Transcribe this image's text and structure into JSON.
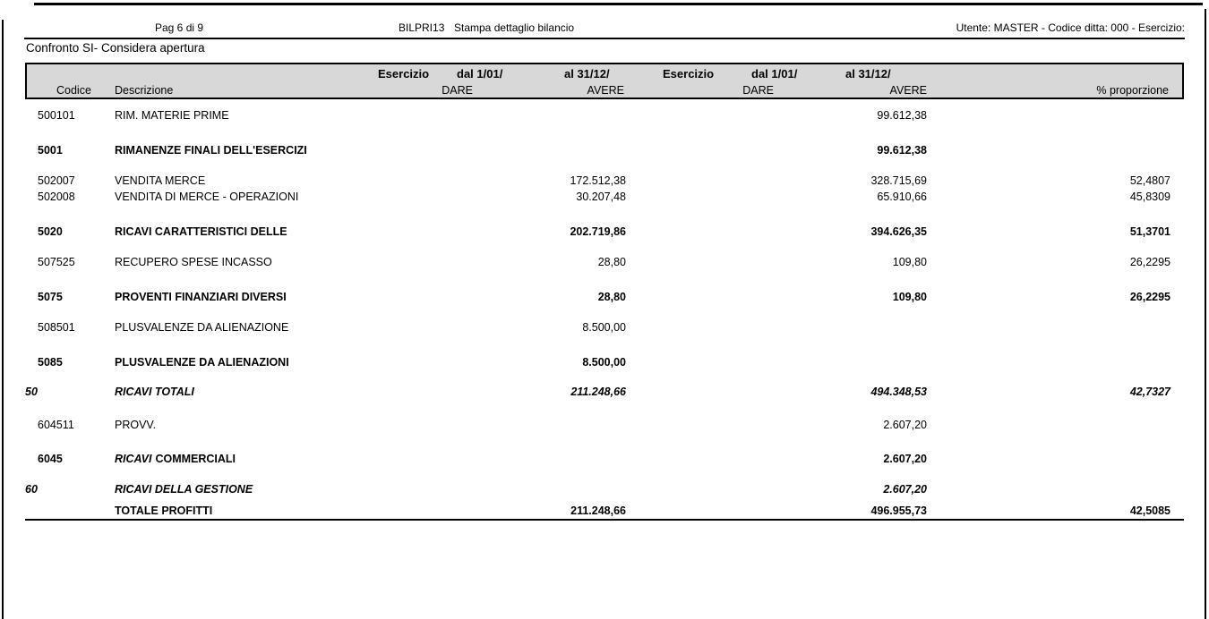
{
  "page_header": {
    "page_label": "Pag 6 di 9",
    "program_code": "BILPRI13",
    "report_title": "Stampa dettaglio bilancio",
    "user_info": "Utente: MASTER - Codice ditta: 000 - Esercizio:"
  },
  "subtitle": "Confronto SI- Considera apertura",
  "table": {
    "header": {
      "exercise1_label": "Esercizio",
      "exercise1_from": "dal 1/01/",
      "exercise1_to": "al 31/12/",
      "exercise2_label": "Esercizio",
      "exercise2_from": "dal 1/01/",
      "exercise2_to": "al 31/12/",
      "code_label": "Codice",
      "description_label": "Descrizione",
      "dare1_label": "DARE",
      "avere1_label": "AVERE",
      "dare2_label": "DARE",
      "avere2_label": "AVERE",
      "proportion_label": "% proporzione"
    },
    "rows": [
      {
        "code": "500101",
        "desc": "RIM. MATERIE PRIME",
        "dare1": "",
        "avere1": "",
        "dare2": "",
        "avere2": "99.612,38",
        "perc": "",
        "style": "normal"
      },
      {
        "code": "5001",
        "desc": "RIMANENZE FINALI DELL'ESERCIZI",
        "dare1": "",
        "avere1": "",
        "dare2": "",
        "avere2": "99.612,38",
        "perc": "",
        "style": "bold"
      },
      {
        "code": "502007",
        "desc": "VENDITA MERCE",
        "dare1": "",
        "avere1": "172.512,38",
        "dare2": "",
        "avere2": "328.715,69",
        "perc": "52,4807",
        "style": "normal"
      },
      {
        "code": "502008",
        "desc": "VENDITA DI MERCE - OPERAZIONI",
        "dare1": "",
        "avere1": "30.207,48",
        "dare2": "",
        "avere2": "65.910,66",
        "perc": "45,8309",
        "style": "normal"
      },
      {
        "code": "5020",
        "desc": "RICAVI CARATTERISTICI DELLE",
        "dare1": "",
        "avere1": "202.719,86",
        "dare2": "",
        "avere2": "394.626,35",
        "perc": "51,3701",
        "style": "bold"
      },
      {
        "code": "507525",
        "desc": "RECUPERO SPESE INCASSO",
        "dare1": "",
        "avere1": "28,80",
        "dare2": "",
        "avere2": "109,80",
        "perc": "26,2295",
        "style": "normal"
      },
      {
        "code": "5075",
        "desc": "PROVENTI FINANZIARI DIVERSI",
        "dare1": "",
        "avere1": "28,80",
        "dare2": "",
        "avere2": "109,80",
        "perc": "26,2295",
        "style": "bold"
      },
      {
        "code": "508501",
        "desc": "PLUSVALENZE DA ALIENAZIONE",
        "dare1": "",
        "avere1": "8.500,00",
        "dare2": "",
        "avere2": "",
        "perc": "",
        "style": "normal"
      },
      {
        "code": "5085",
        "desc": "PLUSVALENZE DA ALIENAZIONI",
        "dare1": "",
        "avere1": "8.500,00",
        "dare2": "",
        "avere2": "",
        "perc": "",
        "style": "bold"
      },
      {
        "code": "50",
        "desc": "RICAVI TOTALI",
        "dare1": "",
        "avere1": "211.248,66",
        "dare2": "",
        "avere2": "494.348,53",
        "perc": "42,7327",
        "style": "bold-italic",
        "outdent": true
      },
      {
        "code": "604511",
        "desc": "PROVV.",
        "dare1": "",
        "avere1": "",
        "dare2": "",
        "avere2": "2.607,20",
        "perc": "",
        "style": "normal"
      },
      {
        "code": "6045",
        "desc": "RICAVI",
        "desc2": "COMMERCIALI",
        "dare1": "",
        "avere1": "",
        "dare2": "",
        "avere2": "2.607,20",
        "perc": "",
        "style": "mixed"
      },
      {
        "code": "60",
        "desc": "RICAVI DELLA GESTIONE",
        "dare1": "",
        "avere1": "",
        "dare2": "",
        "avere2": "2.607,20",
        "perc": "",
        "style": "bold-italic",
        "outdent": true
      }
    ],
    "total_row": {
      "desc": "TOTALE PROFITTI",
      "avere1": "211.248,66",
      "avere2": "496.955,73",
      "perc": "42,5085"
    }
  }
}
